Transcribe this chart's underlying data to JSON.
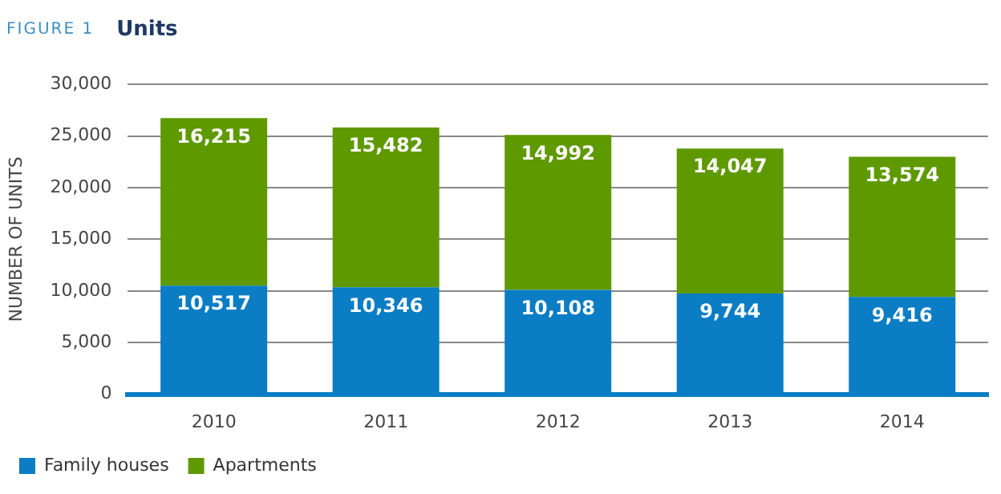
{
  "chart_data": {
    "type": "bar",
    "title": "Units",
    "annotations": [
      "FIGURE 1"
    ],
    "ylabel": "NUMBER OF UNITS",
    "categories": [
      "2010",
      "2011",
      "2012",
      "2013",
      "2014"
    ],
    "stacked": true,
    "series": [
      {
        "name": "Family houses",
        "color": "#0a7dc4",
        "values": [
          10517,
          10346,
          10108,
          9744,
          9416
        ],
        "value_labels": [
          "10,517",
          "10,346",
          "10,108",
          "9,744",
          "9,416"
        ]
      },
      {
        "name": "Apartments",
        "color": "#5f9900",
        "values": [
          16215,
          15482,
          14992,
          14047,
          13574
        ],
        "value_labels": [
          "16,215",
          "15,482",
          "14,992",
          "14,047",
          "13,574"
        ]
      }
    ],
    "ylim": [
      0,
      30000
    ],
    "yticks": [
      {
        "value": 0,
        "label": "0"
      },
      {
        "value": 5000,
        "label": "5,000"
      },
      {
        "value": 10000,
        "label": "10,000"
      },
      {
        "value": 15000,
        "label": "15,000"
      },
      {
        "value": 20000,
        "label": "20,000"
      },
      {
        "value": 25000,
        "label": "25,000"
      },
      {
        "value": 30000,
        "label": "30,000"
      }
    ],
    "grid": "y",
    "legend": "bottom left"
  }
}
